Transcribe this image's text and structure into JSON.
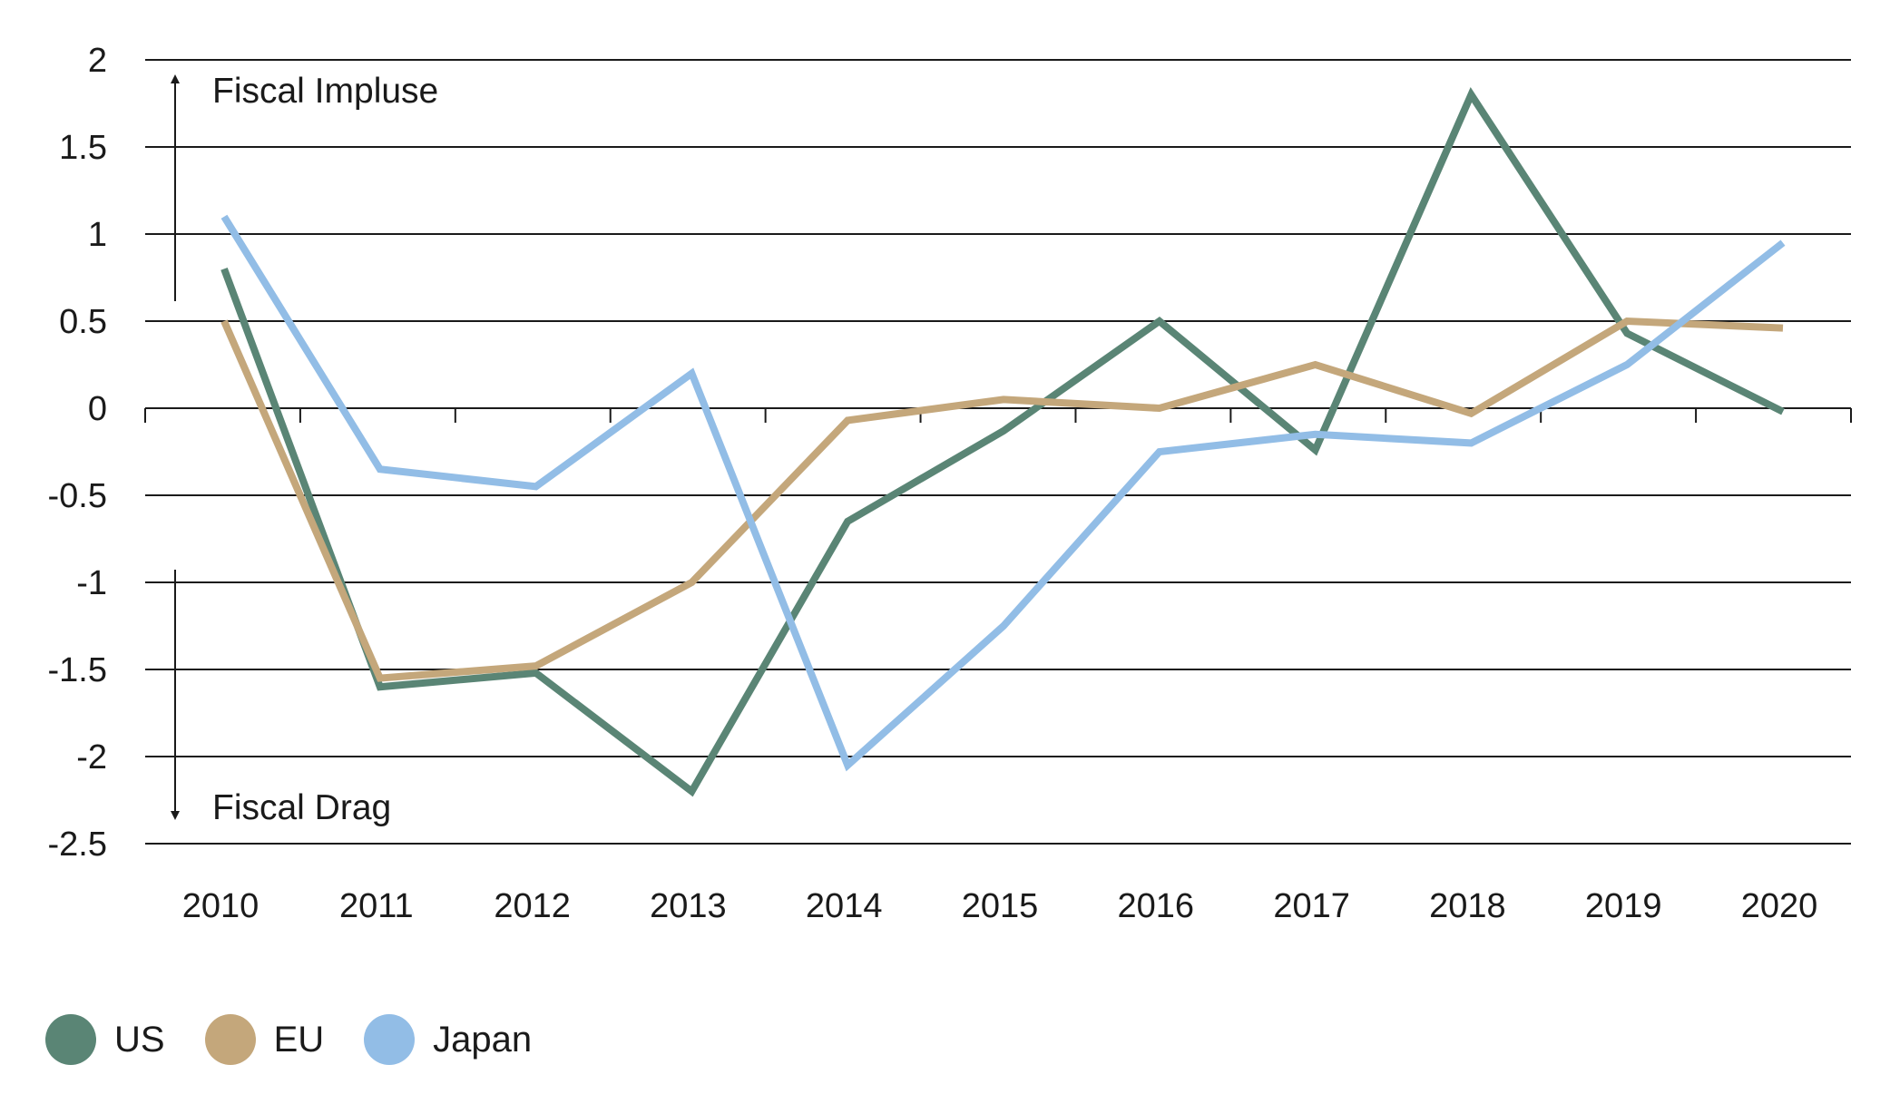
{
  "chart_data": {
    "type": "line",
    "x": [
      "2010",
      "2011",
      "2012",
      "2013",
      "2014",
      "2015",
      "2016",
      "2017",
      "2018",
      "2019",
      "2020"
    ],
    "ylim": [
      -2.5,
      2
    ],
    "yticks": [
      "2",
      "1.5",
      "1",
      "0.5",
      "0",
      "-0.5",
      "-1",
      "-1.5",
      "-2",
      "-2.5"
    ],
    "grid": true,
    "legend_position": "bottom-left",
    "annotations": {
      "up": "Fiscal Impluse",
      "down": "Fiscal Drag"
    },
    "series": [
      {
        "name": "US",
        "color": "#5a8575",
        "values": [
          0.8,
          -1.6,
          -1.52,
          -2.2,
          -0.65,
          -0.13,
          0.5,
          -0.24,
          1.8,
          0.43,
          -0.02
        ]
      },
      {
        "name": "EU",
        "color": "#c4a77b",
        "values": [
          0.5,
          -1.55,
          -1.48,
          -1.0,
          -0.07,
          0.05,
          0.0,
          0.25,
          -0.03,
          0.5,
          0.46
        ]
      },
      {
        "name": "Japan",
        "color": "#92bde6",
        "values": [
          1.1,
          -0.35,
          -0.45,
          0.2,
          -2.05,
          -1.25,
          -0.25,
          -0.15,
          -0.2,
          0.25,
          0.95
        ]
      }
    ]
  }
}
